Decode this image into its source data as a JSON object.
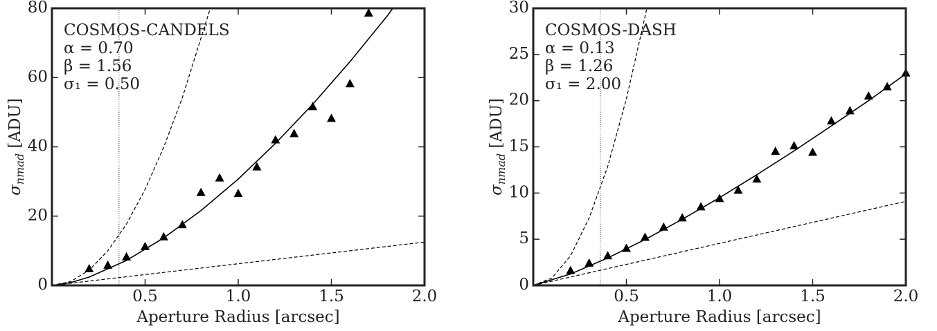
{
  "chart_data": [
    {
      "type": "scatter",
      "xlabel": "Aperture Radius [arcsec]",
      "ylabel_symbol": "σ",
      "ylabel_sub": "nmad",
      "ylabel_unit": "[ADU]",
      "annotations": [
        "COSMOS-CANDELS",
        "α = 0.70",
        "β = 1.56",
        "σ₁ = 0.50"
      ],
      "xlim": [
        0,
        2.0
      ],
      "xticks": [
        0.5,
        {
          "value": 1.0,
          "label": "1.0"
        },
        1.5,
        {
          "value": 2.0,
          "label": "2.0"
        }
      ],
      "ylim": [
        0,
        80
      ],
      "yticks": [
        0,
        20,
        40,
        60,
        80
      ],
      "vlines": [
        0.36
      ],
      "series": [
        {
          "style": "triangle",
          "color": "#000000",
          "x": [
            0.2,
            0.3,
            0.4,
            0.5,
            0.6,
            0.7,
            0.8,
            0.9,
            1.0,
            1.1,
            1.2,
            1.3,
            1.4,
            1.5,
            1.6,
            1.7
          ],
          "values": [
            4.8,
            5.8,
            8.2,
            11.2,
            14.0,
            17.5,
            26.8,
            31.0,
            26.5,
            34.2,
            42.0,
            43.8,
            51.6,
            48.2,
            58.2,
            78.6
          ]
        },
        {
          "style": "solid",
          "color": "#000000",
          "x": [
            0,
            0.1,
            0.2,
            0.4,
            0.6,
            0.8,
            1.0,
            1.2,
            1.4,
            1.6,
            1.8,
            1.83
          ],
          "values": [
            0,
            0.8,
            2.4,
            7.2,
            13.7,
            21.6,
            30.7,
            41.0,
            52.3,
            64.6,
            77.8,
            80
          ]
        },
        {
          "style": "dashed",
          "color": "#000000",
          "x": [
            0,
            2.0
          ],
          "values": [
            0,
            12.5
          ]
        },
        {
          "style": "dashed",
          "color": "#000000",
          "x": [
            0,
            0.1,
            0.2,
            0.3,
            0.4,
            0.5,
            0.6,
            0.7,
            0.85
          ],
          "values": [
            0,
            1.1,
            4.4,
            10.0,
            17.7,
            27.7,
            39.9,
            54.2,
            80
          ]
        }
      ]
    },
    {
      "type": "scatter",
      "xlabel": "Aperture Radius [arcsec]",
      "ylabel_symbol": "σ",
      "ylabel_sub": "nmad",
      "ylabel_unit": "[ADU]",
      "annotations": [
        "COSMOS-DASH",
        "α = 0.13",
        "β = 1.26",
        "σ₁ = 2.00"
      ],
      "xlim": [
        0,
        2.0
      ],
      "xticks": [
        0.5,
        {
          "value": 1.0,
          "label": "1.0"
        },
        1.5,
        {
          "value": 2.0,
          "label": "2.0"
        }
      ],
      "ylim": [
        0,
        30
      ],
      "yticks": [
        0,
        5,
        10,
        15,
        20,
        25,
        30
      ],
      "vlines": [
        0.36
      ],
      "series": [
        {
          "style": "triangle",
          "color": "#000000",
          "x": [
            0.2,
            0.3,
            0.4,
            0.5,
            0.6,
            0.7,
            0.8,
            0.9,
            1.0,
            1.1,
            1.2,
            1.3,
            1.4,
            1.5,
            1.6,
            1.7,
            1.8,
            1.9,
            2.0
          ],
          "values": [
            1.6,
            2.4,
            3.2,
            4.0,
            5.2,
            6.3,
            7.3,
            8.5,
            9.4,
            10.3,
            11.5,
            14.5,
            15.1,
            14.4,
            17.8,
            18.9,
            20.5,
            21.5,
            23.0
          ]
        },
        {
          "style": "solid",
          "color": "#000000",
          "x": [
            0,
            0.2,
            0.4,
            0.6,
            0.8,
            1.0,
            1.2,
            1.4,
            1.6,
            1.8,
            2.0
          ],
          "values": [
            0,
            1.23,
            2.97,
            4.96,
            7.16,
            9.5,
            11.98,
            14.56,
            17.26,
            20.0,
            22.9
          ]
        },
        {
          "style": "dashed",
          "color": "#000000",
          "x": [
            0,
            2.0
          ],
          "values": [
            0,
            9.1
          ]
        },
        {
          "style": "dashed",
          "color": "#000000",
          "x": [
            0,
            0.1,
            0.2,
            0.3,
            0.4,
            0.5,
            0.61
          ],
          "values": [
            0,
            0.8,
            3.2,
            7.3,
            12.9,
            20.2,
            30
          ]
        }
      ]
    }
  ]
}
